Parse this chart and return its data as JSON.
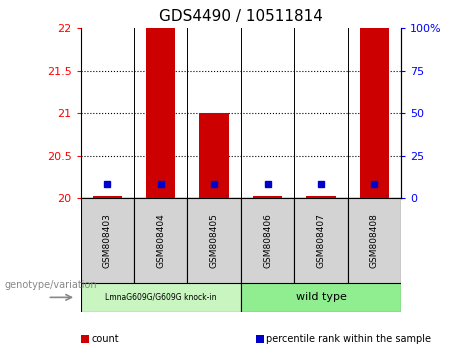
{
  "title": "GDS4490 / 10511814",
  "samples": [
    "GSM808403",
    "GSM808404",
    "GSM808405",
    "GSM808406",
    "GSM808407",
    "GSM808408"
  ],
  "group1_label": "LmnaG609G/G609G knock-in",
  "group1_color": "#c8f5c0",
  "group2_label": "wild type",
  "group2_color": "#90EE90",
  "ylim_left": [
    20,
    22
  ],
  "ylim_right": [
    0,
    100
  ],
  "yticks_left": [
    20,
    20.5,
    21,
    21.5,
    22
  ],
  "yticks_right": [
    0,
    25,
    50,
    75,
    100
  ],
  "ytick_labels_right": [
    "0",
    "25",
    "50",
    "75",
    "100%"
  ],
  "bar_color": "#CC0000",
  "dot_color": "#0000CC",
  "bar_width": 0.55,
  "bar_bottom": 20.0,
  "bar_heights": [
    20.03,
    22.0,
    21.0,
    20.03,
    20.03,
    22.0
  ],
  "dot_values_left": [
    20.17,
    20.17,
    20.17,
    20.17,
    20.17,
    20.17
  ],
  "grid_color": "#000000",
  "sample_col_bg": "#D3D3D3",
  "legend_items": [
    {
      "color": "#CC0000",
      "label": "count"
    },
    {
      "color": "#0000CC",
      "label": "percentile rank within the sample"
    }
  ],
  "genotype_label": "genotype/variation"
}
